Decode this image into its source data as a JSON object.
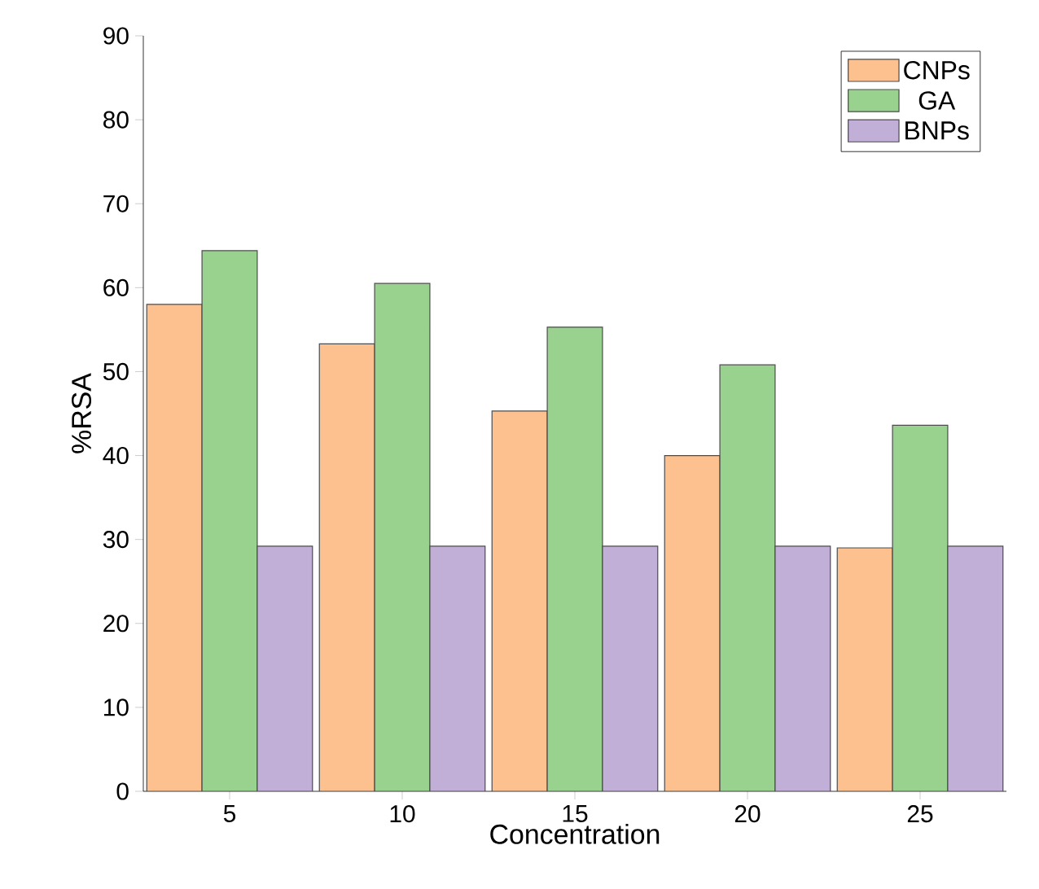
{
  "chart_data": {
    "type": "bar",
    "xlabel": "Concentration",
    "ylabel": "%RSA",
    "categories": [
      "5",
      "10",
      "15",
      "20",
      "25"
    ],
    "series": [
      {
        "name": "CNPs",
        "color": "#fdc190",
        "values": [
          58,
          53.3,
          45.3,
          40,
          29
        ]
      },
      {
        "name": "GA",
        "color": "#99d18e",
        "values": [
          64.4,
          60.5,
          55.3,
          50.8,
          43.6
        ]
      },
      {
        "name": "BNPs",
        "color": "#c1afd8",
        "values": [
          29.2,
          29.2,
          29.2,
          29.2,
          29.2
        ]
      }
    ],
    "ylim": [
      0,
      90
    ],
    "yticks": [
      0,
      10,
      20,
      30,
      40,
      50,
      60,
      70,
      80,
      90
    ],
    "legend": "top right"
  }
}
